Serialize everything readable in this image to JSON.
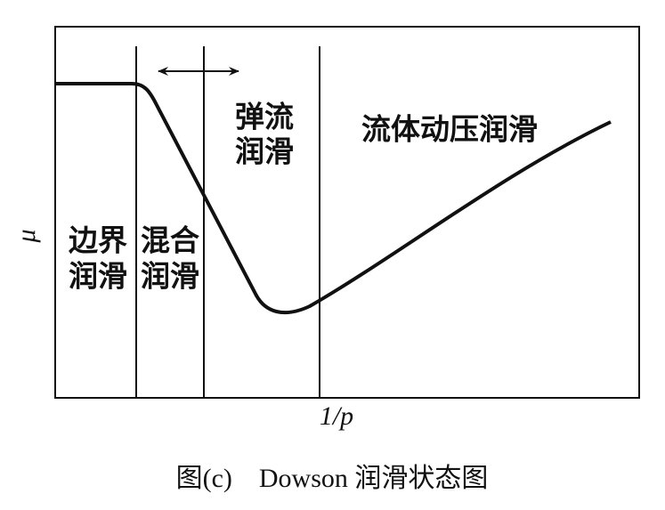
{
  "axes": {
    "y_label": "μ",
    "x_label": "1/p"
  },
  "regions": [
    {
      "lines": [
        "边界",
        "润滑"
      ]
    },
    {
      "lines": [
        "混合",
        "润滑"
      ]
    },
    {
      "lines": [
        "弹流",
        "润滑"
      ]
    },
    {
      "lines": [
        "流体动压润滑"
      ]
    }
  ],
  "caption": "图(c)　Dowson 润滑状态图"
}
